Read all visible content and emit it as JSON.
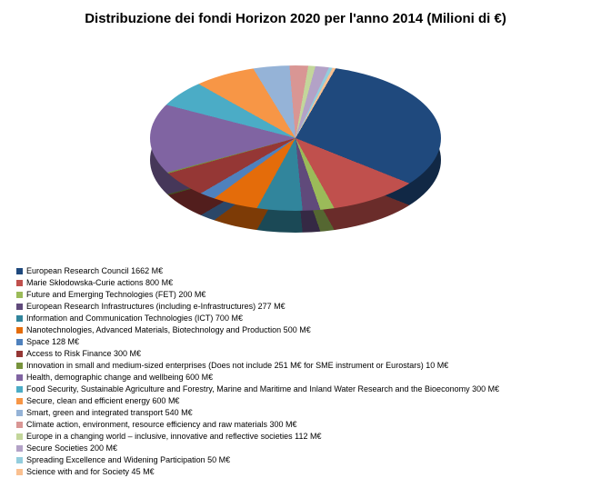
{
  "chart": {
    "title": "Distribuzione dei fondi Horizon 2020 per l'anno 2014 (Milioni di €)",
    "type": "pie-3d",
    "title_fontsize": 15,
    "title_weight": "bold",
    "background_color": "#ffffff",
    "legend_fontsize": 9,
    "unit": "M€",
    "slices": [
      {
        "label": "European Research Council 1662 M€",
        "value": 1662,
        "color": "#1f497d"
      },
      {
        "label": "Marie Skłodowska-Curie actions 800 M€",
        "value": 800,
        "color": "#c0504d"
      },
      {
        "label": "Future and Emerging Technologies (FET) 200 M€",
        "value": 200,
        "color": "#9bbb59"
      },
      {
        "label": "European Research Infrastructures (including e-Infrastructures) 277 M€",
        "value": 277,
        "color": "#604a7b"
      },
      {
        "label": "Information and Communication Technologies (ICT) 700 M€",
        "value": 700,
        "color": "#31859c"
      },
      {
        "label": "Nanotechnologies, Advanced Materials, Biotechnology and Production 500 M€",
        "value": 500,
        "color": "#e46c0a"
      },
      {
        "label": "Space 128 M€",
        "value": 128,
        "color": "#4f81bd"
      },
      {
        "label": "Access to Risk Finance 300 M€",
        "value": 300,
        "color": "#953735"
      },
      {
        "label": "Innovation in small and medium-sized enterprises (Does not include 251 M€ for SME instrument or Eurostars) 10 M€",
        "value": 10,
        "color": "#77933c"
      },
      {
        "label": "Health, demographic change and wellbeing 600 M€",
        "value": 600,
        "color": "#8064a2"
      },
      {
        "label": "Food Security, Sustainable Agriculture and Forestry, Marine and Maritime and Inland Water Research and the Bioeconomy 300 M€",
        "value": 300,
        "color": "#4bacc6"
      },
      {
        "label": "Secure, clean and efficient energy 600 M€",
        "value": 600,
        "color": "#f79646"
      },
      {
        "label": "Smart, green and integrated transport 540 M€",
        "value": 540,
        "color": "#95b3d7"
      },
      {
        "label": "Climate action, environment, resource efficiency and raw materials 300 M€",
        "value": 300,
        "color": "#d99694"
      },
      {
        "label": "Europe in a changing world – inclusive, innovative and reflective societies 112 M€",
        "value": 112,
        "color": "#c3d69b"
      },
      {
        "label": "Secure Societies 200 M€",
        "value": 200,
        "color": "#b3a2c7"
      },
      {
        "label": "Spreading Excellence and Widening Participation 50 M€",
        "value": 50,
        "color": "#93cddd"
      },
      {
        "label": "Science with and for Society 45 M€",
        "value": 45,
        "color": "#fac090"
      }
    ]
  }
}
